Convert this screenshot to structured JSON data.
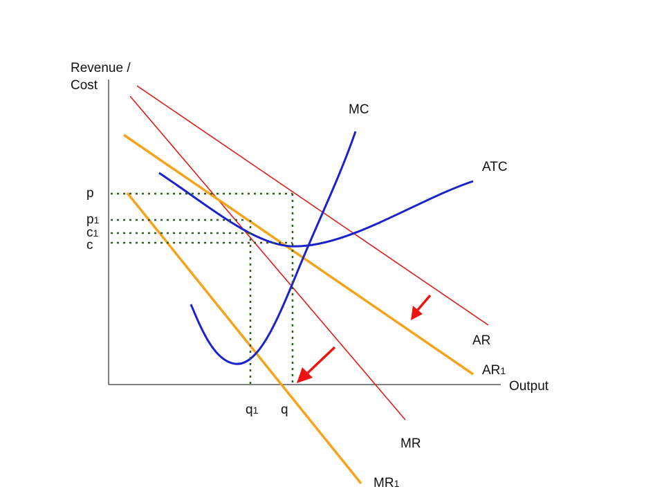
{
  "axes": {
    "y_label_line1": "Revenue /",
    "y_label_line2": "Cost",
    "x_label": "Output"
  },
  "curves": {
    "mc": "MC",
    "atc": "ATC",
    "ar": "AR",
    "ar1_base": "AR",
    "ar1_sub": "1",
    "mr": "MR",
    "mr1_base": "MR",
    "mr1_sub": "1"
  },
  "price_levels": {
    "p": "p",
    "p1_base": "p",
    "p1_sub": "1",
    "c1_base": "c",
    "c1_sub": "1",
    "c": "c"
  },
  "quantities": {
    "q1_base": "q",
    "q1_sub": "1",
    "q": "q"
  },
  "colors": {
    "original_demand": "#dd1c1c",
    "new_demand": "#f5a31a",
    "cost_curves": "#1a22cc",
    "guide_lines": "#2e5a1e",
    "shift_arrows": "#ee1111",
    "axes": "#000000"
  }
}
